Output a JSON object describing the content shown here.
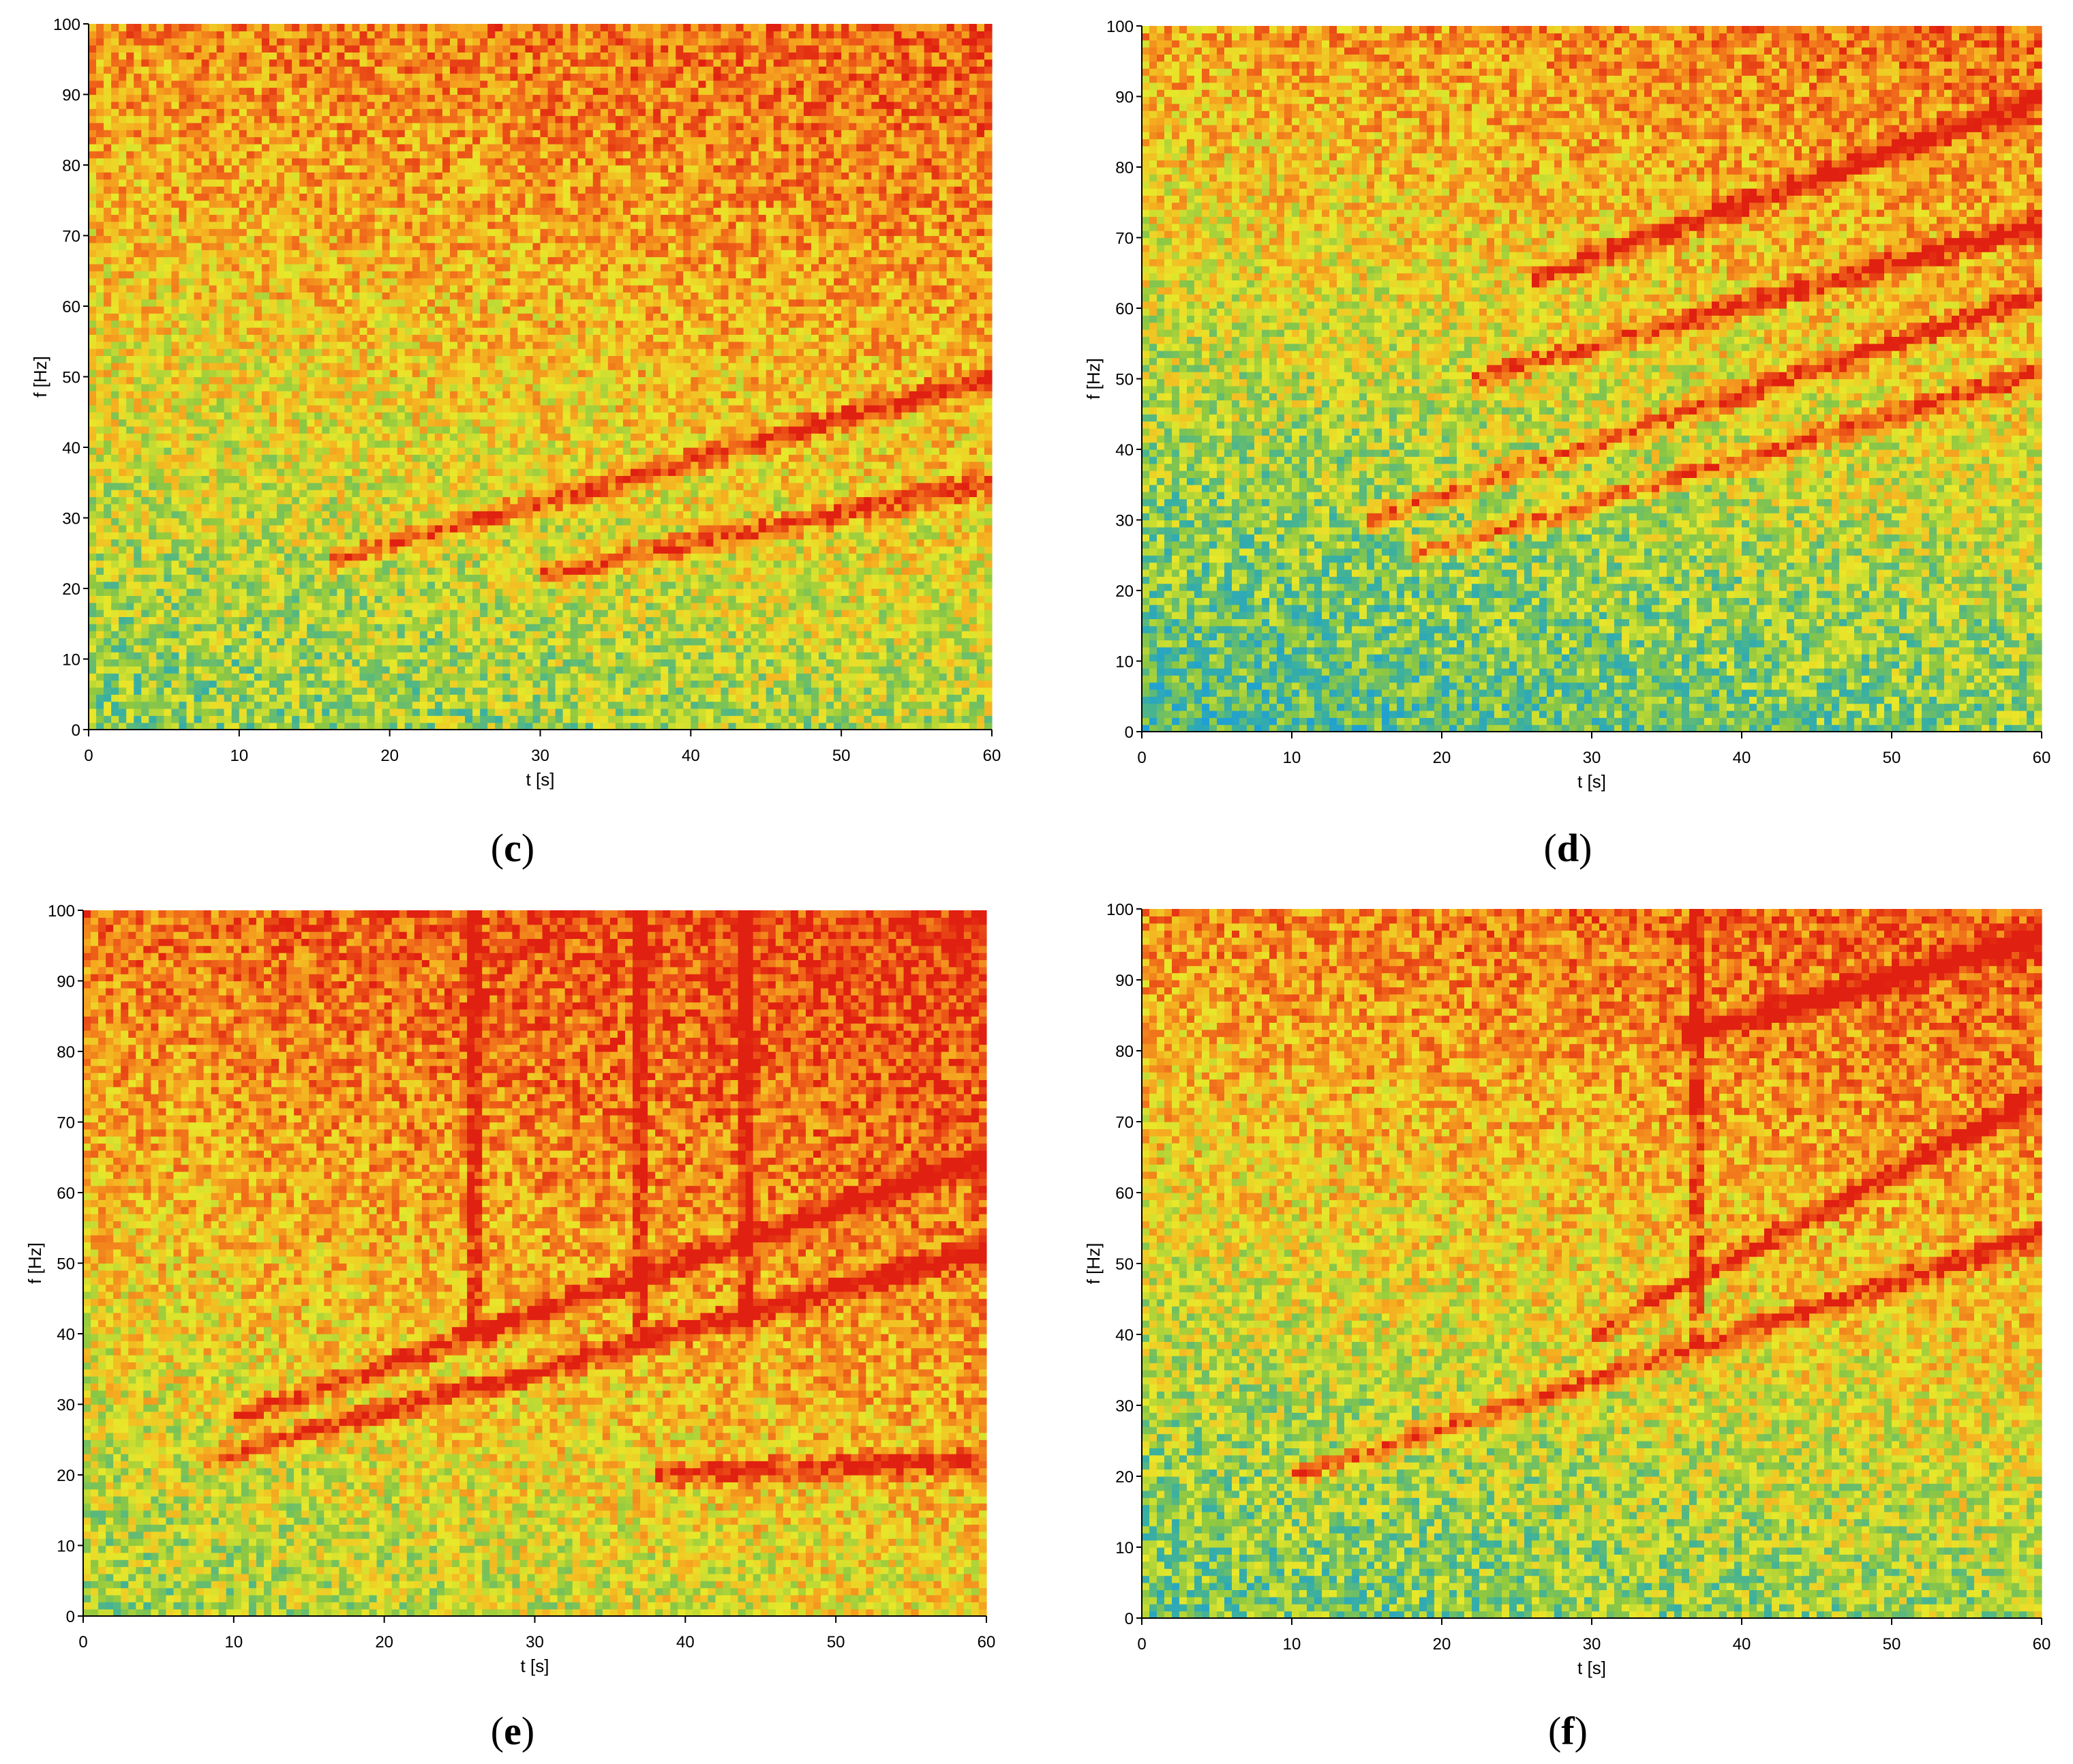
{
  "figure": {
    "panels": [
      {
        "id": "c",
        "caption_open": "(",
        "caption_letter": "c",
        "caption_close": ")"
      },
      {
        "id": "d",
        "caption_open": "(",
        "caption_letter": "d",
        "caption_close": ")"
      },
      {
        "id": "e",
        "caption_open": "(",
        "caption_letter": "e",
        "caption_close": ")"
      },
      {
        "id": "f",
        "caption_open": "(",
        "caption_letter": "f",
        "caption_close": ")"
      }
    ]
  },
  "chart_data": [
    {
      "panel": "c",
      "type": "heatmap",
      "xlabel": "t [s]",
      "ylabel": "f [Hz]",
      "xlim": [
        0,
        60
      ],
      "ylim": [
        0,
        100
      ],
      "xticks": [
        0,
        10,
        20,
        30,
        40,
        50,
        60
      ],
      "yticks": [
        0,
        10,
        20,
        30,
        40,
        50,
        60,
        70,
        80,
        90,
        100
      ],
      "colormap": [
        "#1e9fd6",
        "#3ab0a0",
        "#8fc840",
        "#e8e82a",
        "#f5b020",
        "#f06a1a",
        "#e02010"
      ],
      "ridges": [
        {
          "t": [
            16,
            60
          ],
          "f": [
            24,
            50
          ]
        },
        {
          "t": [
            30,
            60
          ],
          "f": [
            22,
            35
          ]
        }
      ],
      "background": {
        "low_f": 0.35,
        "high_f": 0.78,
        "time_trend": 0.12
      }
    },
    {
      "panel": "d",
      "type": "heatmap",
      "xlabel": "t [s]",
      "ylabel": "f [Hz]",
      "xlim": [
        0,
        60
      ],
      "ylim": [
        0,
        100
      ],
      "xticks": [
        0,
        10,
        20,
        30,
        40,
        50,
        60
      ],
      "yticks": [
        0,
        10,
        20,
        30,
        40,
        50,
        60,
        70,
        80,
        90,
        100
      ],
      "colormap": [
        "#1e9fd6",
        "#3ab0a0",
        "#8fc840",
        "#e8e82a",
        "#f5b020",
        "#f06a1a",
        "#e02010"
      ],
      "ridges": [
        {
          "t": [
            18,
            60
          ],
          "f": [
            25,
            51
          ]
        },
        {
          "t": [
            15,
            60
          ],
          "f": [
            30,
            62
          ]
        },
        {
          "t": [
            22,
            60
          ],
          "f": [
            50,
            72
          ]
        },
        {
          "t": [
            26,
            60
          ],
          "f": [
            64,
            90
          ]
        }
      ],
      "background": {
        "low_f": 0.22,
        "high_f": 0.72,
        "time_trend": 0.15
      }
    },
    {
      "panel": "e",
      "type": "heatmap",
      "xlabel": "t [s]",
      "ylabel": "f [Hz]",
      "xlim": [
        0,
        60
      ],
      "ylim": [
        0,
        100
      ],
      "xticks": [
        0,
        10,
        20,
        30,
        40,
        50,
        60
      ],
      "yticks": [
        0,
        10,
        20,
        30,
        40,
        50,
        60,
        70,
        80,
        90,
        100
      ],
      "colormap": [
        "#1e9fd6",
        "#3ab0a0",
        "#8fc840",
        "#e8e82a",
        "#f5b020",
        "#f06a1a",
        "#e02010"
      ],
      "ridges": [
        {
          "t": [
            8,
            60
          ],
          "f": [
            22,
            52
          ]
        },
        {
          "t": [
            10,
            60
          ],
          "f": [
            28,
            65
          ]
        },
        {
          "t": [
            38,
            60
          ],
          "f": [
            20,
            22
          ]
        }
      ],
      "vertical_bands": [
        26,
        37,
        44
      ],
      "background": {
        "low_f": 0.42,
        "high_f": 0.85,
        "time_trend": 0.18
      }
    },
    {
      "panel": "f",
      "type": "heatmap",
      "xlabel": "t [s]",
      "ylabel": "f [Hz]",
      "xlim": [
        0,
        60
      ],
      "ylim": [
        0,
        100
      ],
      "xticks": [
        0,
        10,
        20,
        30,
        40,
        50,
        60
      ],
      "yticks": [
        0,
        10,
        20,
        30,
        40,
        50,
        60,
        70,
        80,
        90,
        100
      ],
      "colormap": [
        "#1e9fd6",
        "#3ab0a0",
        "#8fc840",
        "#e8e82a",
        "#f5b020",
        "#f06a1a",
        "#e02010"
      ],
      "ridges": [
        {
          "t": [
            10,
            60
          ],
          "f": [
            20,
            54
          ]
        },
        {
          "t": [
            30,
            60
          ],
          "f": [
            40,
            74
          ]
        },
        {
          "t": [
            36,
            60
          ],
          "f": [
            82,
            96
          ]
        }
      ],
      "vertical_bands": [
        37
      ],
      "background": {
        "low_f": 0.3,
        "high_f": 0.78,
        "time_trend": 0.14
      }
    }
  ]
}
